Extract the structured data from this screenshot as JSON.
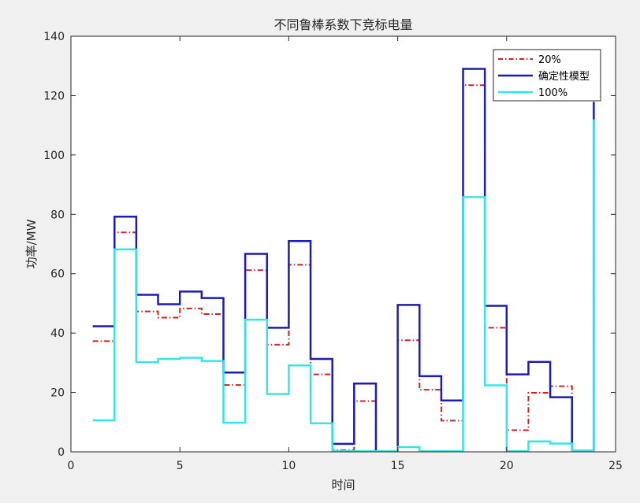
{
  "chart_data": {
    "type": "line",
    "step": "post",
    "title": "不同鲁棒系数下竞标电量",
    "xlabel": "时间",
    "ylabel": "功率/MW",
    "xlim": [
      0,
      25
    ],
    "ylim": [
      0,
      140
    ],
    "xticks": [
      0,
      5,
      10,
      15,
      20,
      25
    ],
    "yticks": [
      0,
      20,
      40,
      60,
      80,
      100,
      120,
      140
    ],
    "grid": false,
    "legend_position": "top-right",
    "x": [
      1,
      2,
      3,
      4,
      5,
      6,
      7,
      8,
      9,
      10,
      11,
      12,
      13,
      14,
      15,
      16,
      17,
      18,
      19,
      20,
      21,
      22,
      23,
      24
    ],
    "series": [
      {
        "name": "20%",
        "color": "#cc2222",
        "style": "dashdot",
        "values": [
          37.3,
          73.9,
          47.3,
          45.2,
          48.3,
          46.4,
          22.5,
          61.2,
          36.1,
          63.0,
          26.1,
          0.6,
          17.1,
          0.3,
          37.6,
          20.9,
          10.5,
          123.5,
          41.8,
          7.3,
          19.9,
          22.1,
          0.2,
          113.0
        ]
      },
      {
        "name": "确定性模型",
        "color": "#1c1cb4",
        "style": "solid",
        "values": [
          42.3,
          79.2,
          52.9,
          49.7,
          54.0,
          51.8,
          26.7,
          66.7,
          41.8,
          71.0,
          31.3,
          2.7,
          23.0,
          0.2,
          49.5,
          25.5,
          17.3,
          129.0,
          49.2,
          26.1,
          30.3,
          18.4,
          0.3,
          117.9
        ]
      },
      {
        "name": "100%",
        "color": "#33e6e6",
        "style": "solid",
        "values": [
          10.6,
          68.2,
          30.2,
          31.3,
          31.7,
          30.6,
          9.8,
          44.5,
          19.5,
          29.1,
          9.6,
          0.3,
          0.2,
          0.2,
          1.6,
          0.2,
          0.2,
          85.8,
          22.4,
          0.2,
          3.5,
          2.8,
          0.2,
          112.0
        ]
      }
    ]
  }
}
